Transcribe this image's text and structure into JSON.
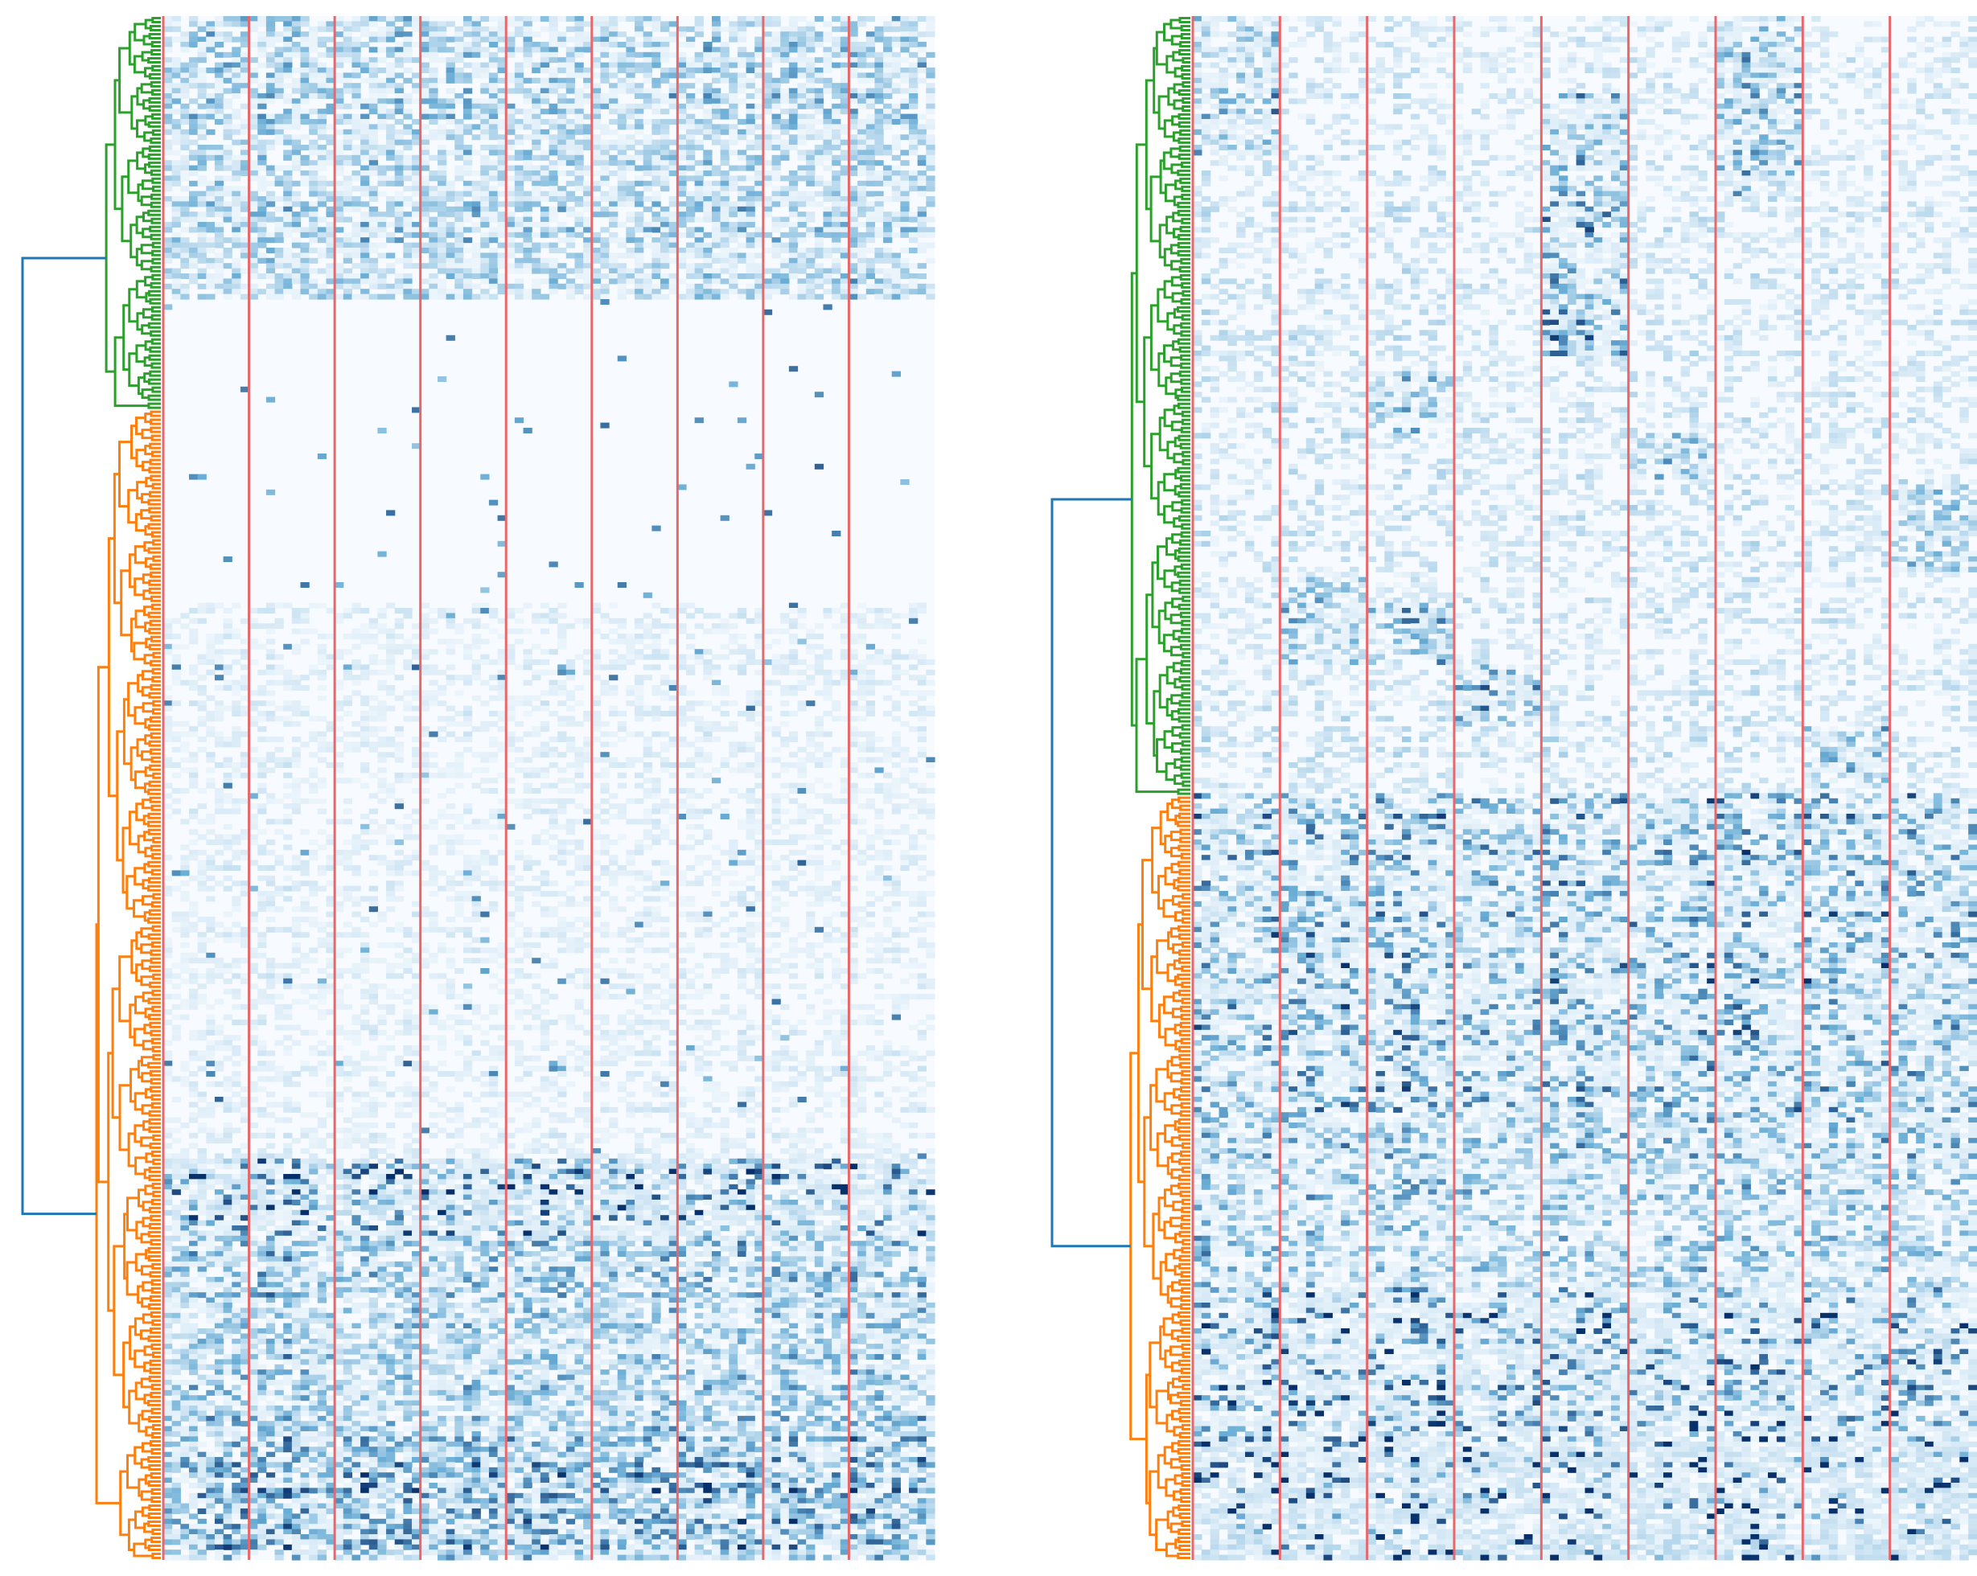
{
  "figure": {
    "description_kind": "two clustered heatmaps with row dendrograms"
  },
  "colors": {
    "cmap_low": "#f7fbff",
    "cmap_mid": "#6baed6",
    "cmap_high": "#08306b",
    "separator": "#e8676b",
    "root_link": "#1f77b4",
    "cluster_a": "#2ca02c",
    "cluster_b": "#ff7f0e"
  },
  "chart_data": [
    {
      "type": "heatmap",
      "name": "left-heatmap",
      "title": "",
      "xlabel": "",
      "ylabel": "",
      "n_rows": 300,
      "n_cols": 90,
      "column_groups": 9,
      "value_range": [
        0,
        1
      ],
      "dendrogram": {
        "orientation": "left",
        "clusters": [
          {
            "name": "cluster-1",
            "color": "green",
            "row_fraction": [
              0.0,
              0.255
            ]
          },
          {
            "name": "cluster-2",
            "color": "orange",
            "row_fraction": [
              0.255,
              1.0
            ]
          }
        ],
        "root_color": "blue"
      },
      "row_bands": [
        {
          "from": 0.0,
          "to": 0.185,
          "intensity": 0.28,
          "noise": 0.9
        },
        {
          "from": 0.185,
          "to": 0.38,
          "intensity": 0.01,
          "noise": 0.2
        },
        {
          "from": 0.38,
          "to": 0.74,
          "intensity": 0.07,
          "noise": 0.9
        },
        {
          "from": 0.74,
          "to": 0.77,
          "intensity": 0.62,
          "noise": 0.4
        },
        {
          "from": 0.77,
          "to": 0.778,
          "intensity": 0.95,
          "noise": 0.2
        },
        {
          "from": 0.778,
          "to": 0.79,
          "intensity": 0.55,
          "noise": 0.4
        },
        {
          "from": 0.79,
          "to": 0.92,
          "intensity": 0.33,
          "noise": 0.9
        },
        {
          "from": 0.92,
          "to": 1.0,
          "intensity": 0.42,
          "noise": 0.9
        }
      ]
    },
    {
      "type": "heatmap",
      "name": "right-heatmap",
      "title": "",
      "xlabel": "",
      "ylabel": "",
      "n_rows": 300,
      "n_cols": 90,
      "column_groups": 9,
      "value_range": [
        0,
        1
      ],
      "dendrogram": {
        "orientation": "left",
        "clusters": [
          {
            "name": "cluster-1",
            "color": "green",
            "row_fraction": [
              0.0,
              0.505
            ]
          },
          {
            "name": "cluster-2",
            "color": "orange",
            "row_fraction": [
              0.505,
              1.0
            ]
          }
        ],
        "root_color": "blue"
      },
      "row_bands": [
        {
          "from": 0.0,
          "to": 0.505,
          "intensity": 0.12,
          "noise": 0.7
        },
        {
          "from": 0.505,
          "to": 0.74,
          "intensity": 0.4,
          "noise": 0.6
        },
        {
          "from": 0.74,
          "to": 0.825,
          "intensity": 0.3,
          "noise": 0.7
        },
        {
          "from": 0.825,
          "to": 0.925,
          "intensity": 0.55,
          "noise": 0.4
        },
        {
          "from": 0.925,
          "to": 0.985,
          "intensity": 0.75,
          "noise": 0.2
        },
        {
          "from": 0.985,
          "to": 1.0,
          "intensity": 0.97,
          "noise": 0.1
        }
      ],
      "block_highlights": [
        {
          "group": 0,
          "from": 0.0,
          "to": 0.09,
          "intensity": 0.35
        },
        {
          "group": 4,
          "from": 0.05,
          "to": 0.22,
          "intensity": 0.4
        },
        {
          "group": 6,
          "from": 0.0,
          "to": 0.12,
          "intensity": 0.38
        },
        {
          "group": 2,
          "from": 0.23,
          "to": 0.27,
          "intensity": 0.3
        },
        {
          "group": 5,
          "from": 0.27,
          "to": 0.3,
          "intensity": 0.3
        },
        {
          "group": 1,
          "from": 0.36,
          "to": 0.42,
          "intensity": 0.3
        },
        {
          "group": 2,
          "from": 0.38,
          "to": 0.42,
          "intensity": 0.35
        },
        {
          "group": 3,
          "from": 0.42,
          "to": 0.46,
          "intensity": 0.38
        },
        {
          "group": 8,
          "from": 0.3,
          "to": 0.36,
          "intensity": 0.28
        },
        {
          "group": 7,
          "from": 0.46,
          "to": 0.5,
          "intensity": 0.3
        }
      ]
    }
  ]
}
